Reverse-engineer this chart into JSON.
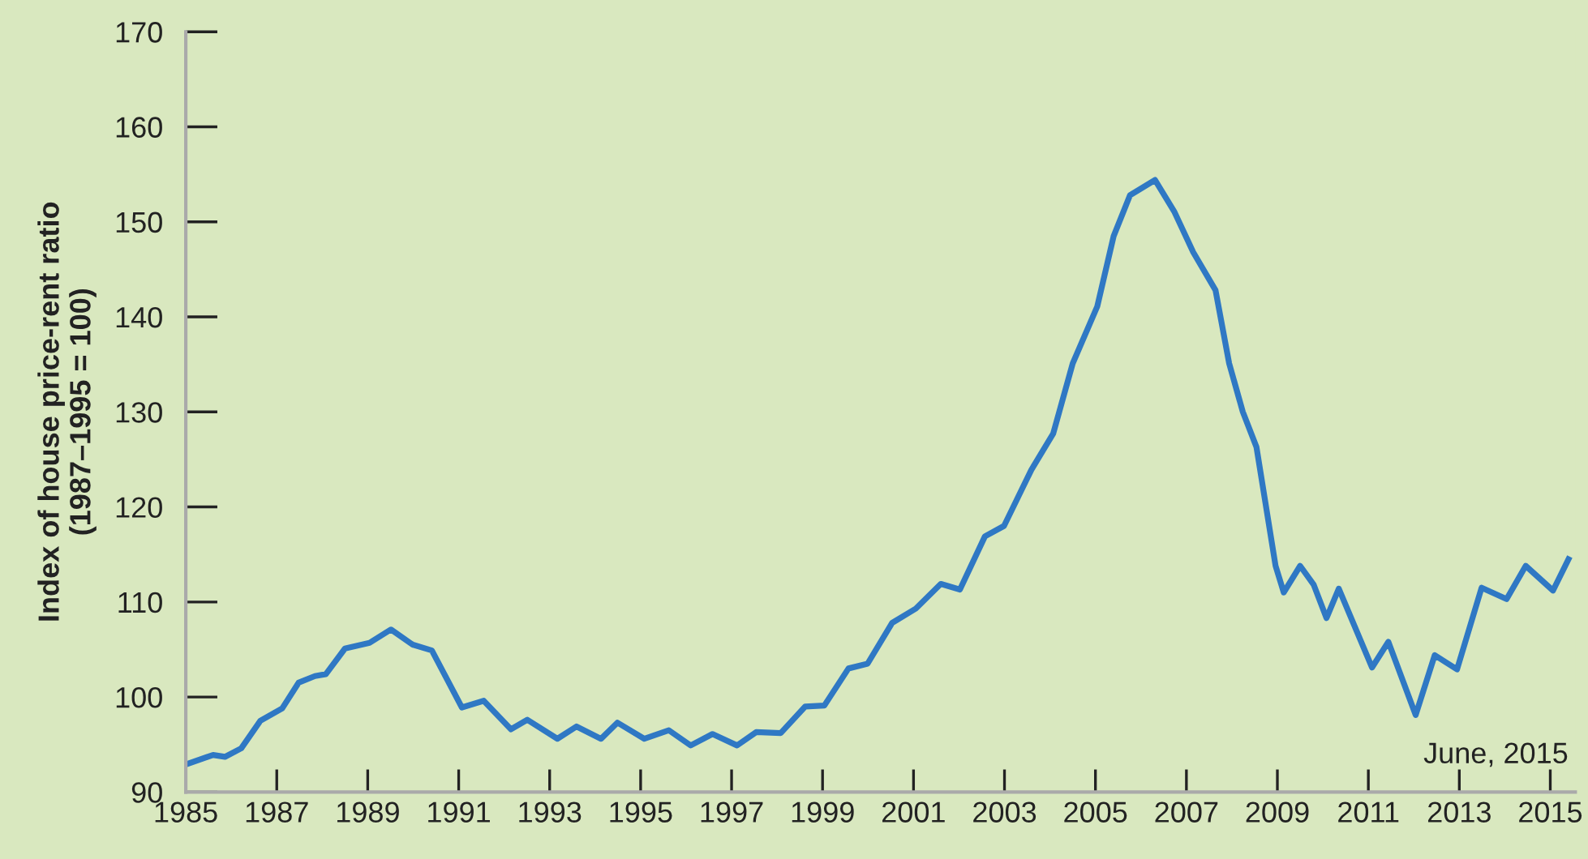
{
  "chart_data": {
    "type": "line",
    "ylabel": "Index of house price-rent ratio\n(1987–1995 = 100)",
    "x": [
      1985.0,
      1985.6,
      1985.86,
      1986.22,
      1986.64,
      1987.12,
      1987.48,
      1987.84,
      1988.08,
      1988.5,
      1989.04,
      1989.51,
      1989.99,
      1990.41,
      1991.07,
      1991.55,
      1992.15,
      1992.51,
      1993.17,
      1993.59,
      1994.13,
      1994.49,
      1995.08,
      1995.62,
      1996.1,
      1996.58,
      1997.12,
      1997.54,
      1998.08,
      1998.62,
      1999.04,
      1999.57,
      1999.99,
      2000.53,
      2001.05,
      2001.6,
      2002.02,
      2002.57,
      2002.99,
      2003.59,
      2004.07,
      2004.5,
      2005.04,
      2005.4,
      2005.76,
      2006.31,
      2006.73,
      2007.15,
      2007.64,
      2007.94,
      2008.24,
      2008.54,
      2008.96,
      2009.14,
      2009.5,
      2009.8,
      2010.08,
      2010.35,
      2011.08,
      2011.44,
      2012.04,
      2012.46,
      2012.95,
      2013.49,
      2014.04,
      2014.46,
      2015.06,
      2015.4
    ],
    "series": [
      {
        "color": "#2f78c4",
        "values": [
          92.9,
          93.9,
          93.7,
          94.6,
          97.5,
          98.8,
          101.5,
          102.2,
          102.4,
          105.1,
          105.7,
          107.1,
          105.5,
          104.9,
          98.9,
          99.6,
          96.6,
          97.6,
          95.6,
          96.9,
          95.6,
          97.3,
          95.6,
          96.5,
          94.9,
          96.1,
          94.9,
          96.3,
          96.2,
          99.0,
          99.1,
          103.0,
          103.5,
          107.8,
          109.3,
          111.9,
          111.3,
          116.9,
          118.0,
          123.9,
          127.7,
          135.1,
          141.1,
          148.5,
          152.8,
          154.4,
          151.1,
          146.8,
          142.8,
          135.1,
          130.0,
          126.3,
          113.8,
          111.0,
          113.8,
          111.8,
          108.3,
          111.4,
          103.1,
          105.8,
          98.1,
          104.4,
          102.9,
          111.5,
          110.3,
          113.8,
          111.2,
          114.5
        ]
      }
    ],
    "xlim": [
      1985,
      2015.55
    ],
    "xticks": [
      1985,
      1987,
      1989,
      1991,
      1993,
      1995,
      1997,
      1999,
      2001,
      2003,
      2005,
      2007,
      2009,
      2011,
      2013,
      2015
    ],
    "ylim": [
      90,
      170
    ],
    "yticks": [
      90,
      100,
      110,
      120,
      130,
      140,
      150,
      160,
      170
    ],
    "annotations": [
      "June, 2015"
    ],
    "grid": false,
    "legend": false
  }
}
